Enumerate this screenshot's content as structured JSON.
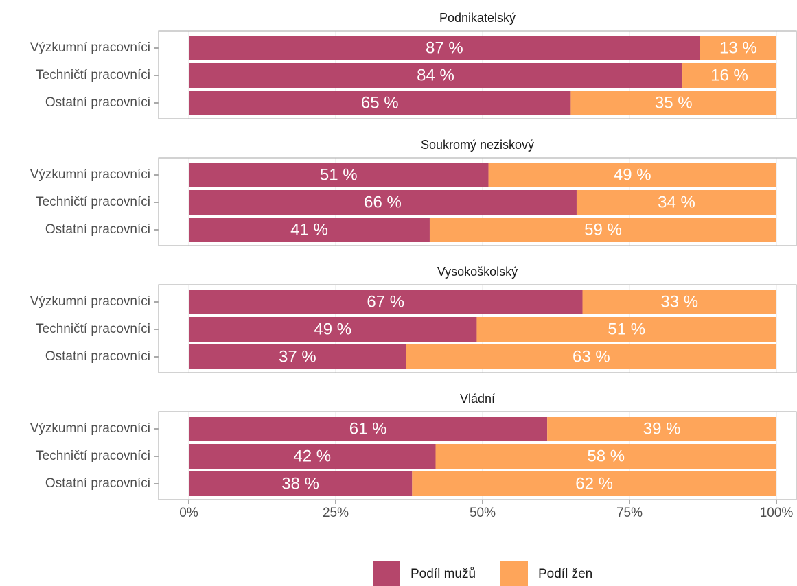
{
  "chart_data": {
    "type": "bar",
    "orientation": "horizontal",
    "stacked": true,
    "xlim": [
      0,
      100
    ],
    "xticks": [
      {
        "value": 0,
        "label": "0%"
      },
      {
        "value": 25,
        "label": "25%"
      },
      {
        "value": 50,
        "label": "50%"
      },
      {
        "value": 75,
        "label": "75%"
      },
      {
        "value": 100,
        "label": "100%"
      }
    ],
    "grid": true,
    "legend_position": "bottom",
    "series": [
      {
        "name": "Podíl mužů",
        "color": "#b5466b"
      },
      {
        "name": "Podíl žen",
        "color": "#fea55a"
      }
    ],
    "panels": [
      {
        "title": "Podnikatelský",
        "categories": [
          "Výzkumní pracovníci",
          "Techničtí pracovníci",
          "Ostatní pracovníci"
        ],
        "values": [
          [
            87,
            84,
            65
          ],
          [
            13,
            16,
            35
          ]
        ],
        "value_labels": [
          [
            "87 %",
            "84 %",
            "65 %"
          ],
          [
            "13 %",
            "16 %",
            "35 %"
          ]
        ]
      },
      {
        "title": "Soukromý neziskový",
        "categories": [
          "Výzkumní pracovníci",
          "Techničtí pracovníci",
          "Ostatní pracovníci"
        ],
        "values": [
          [
            51,
            66,
            41
          ],
          [
            49,
            34,
            59
          ]
        ],
        "value_labels": [
          [
            "51 %",
            "66 %",
            "41 %"
          ],
          [
            "49 %",
            "34 %",
            "59 %"
          ]
        ]
      },
      {
        "title": "Vysokoškolský",
        "categories": [
          "Výzkumní pracovníci",
          "Techničtí pracovníci",
          "Ostatní pracovníci"
        ],
        "values": [
          [
            67,
            49,
            37
          ],
          [
            33,
            51,
            63
          ]
        ],
        "value_labels": [
          [
            "67 %",
            "49 %",
            "37 %"
          ],
          [
            "33 %",
            "51 %",
            "63 %"
          ]
        ]
      },
      {
        "title": "Vládní",
        "categories": [
          "Výzkumní pracovníci",
          "Techničtí pracovníci",
          "Ostatní pracovníci"
        ],
        "values": [
          [
            61,
            42,
            38
          ],
          [
            39,
            58,
            62
          ]
        ],
        "value_labels": [
          [
            "61 %",
            "42 %",
            "38 %"
          ],
          [
            "39 %",
            "58 %",
            "62 %"
          ]
        ]
      }
    ]
  }
}
